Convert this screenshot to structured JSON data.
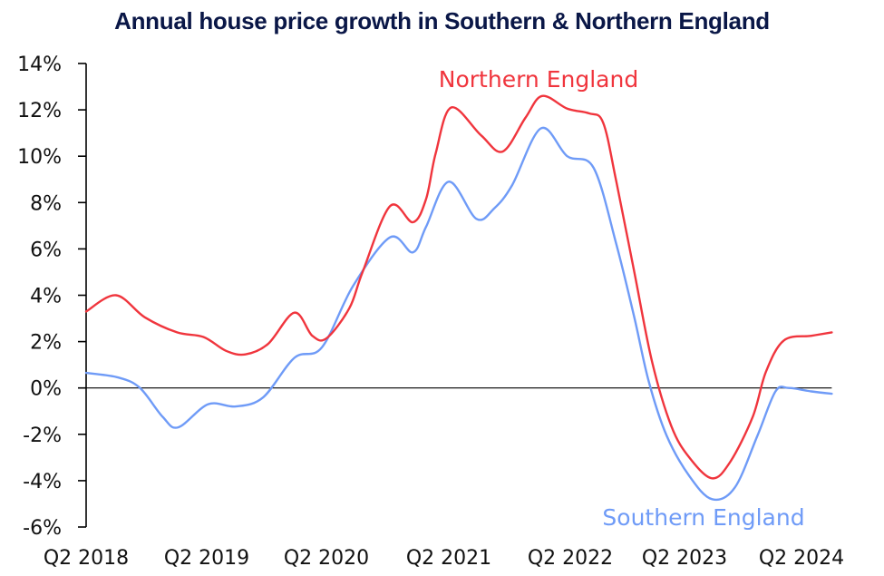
{
  "chart_data": {
    "type": "line",
    "title": "Annual house price growth in Southern & Northern England",
    "xlabel": "",
    "ylabel": "",
    "ylim": [
      -6,
      14
    ],
    "xlim_years_since_q2_2018": [
      0,
      6.23
    ],
    "x_unit": "years since Q2 2018",
    "y_ticks": [
      14,
      12,
      10,
      8,
      6,
      4,
      2,
      0,
      -2,
      -4,
      -6
    ],
    "y_tick_labels": [
      "14%",
      "12%",
      "10%",
      "8%",
      "6%",
      "4%",
      "2%",
      "0%",
      "-2%",
      "-4%",
      "-6%"
    ],
    "x_ticks": [
      0,
      1,
      2,
      3,
      4,
      5,
      6
    ],
    "x_tick_labels": [
      "Q2 2018",
      "Q2 2019",
      "Q2 2020",
      "Q2 2021",
      "Q2 2022",
      "Q2 2023",
      "Q2 2024"
    ],
    "grid": false,
    "zero_line": true,
    "series": [
      {
        "name": "Northern England",
        "color": "#f0353d",
        "label_position": "top-center",
        "x": [
          0,
          0.25,
          0.49,
          0.76,
          0.98,
          1.17,
          1.33,
          1.52,
          1.74,
          1.89,
          2.01,
          2.2,
          2.31,
          2.54,
          2.73,
          2.84,
          2.92,
          3.05,
          3.3,
          3.48,
          3.67,
          3.81,
          4.02,
          4.2,
          4.32,
          4.43,
          4.58,
          4.73,
          4.89,
          5.04,
          5.23,
          5.38,
          5.57,
          5.68,
          5.83,
          6.06,
          6.23
        ],
        "values": [
          3.3,
          4.0,
          3.05,
          2.4,
          2.2,
          1.6,
          1.45,
          1.9,
          3.25,
          2.25,
          2.15,
          3.45,
          5.0,
          7.85,
          7.15,
          8.15,
          10.1,
          12.1,
          10.9,
          10.2,
          11.65,
          12.6,
          12.05,
          11.85,
          11.45,
          8.9,
          5.0,
          1.1,
          -1.65,
          -3.0,
          -3.9,
          -3.2,
          -1.25,
          0.7,
          2.05,
          2.25,
          2.4
        ]
      },
      {
        "name": "Southern England",
        "color": "#6f9bf7",
        "label_position": "bottom-right",
        "x": [
          0,
          0.27,
          0.45,
          0.64,
          0.77,
          1.02,
          1.25,
          1.48,
          1.74,
          1.97,
          2.23,
          2.54,
          2.73,
          2.84,
          3.03,
          3.26,
          3.41,
          3.56,
          3.8,
          4.02,
          4.24,
          4.43,
          4.58,
          4.7,
          4.85,
          5.04,
          5.23,
          5.42,
          5.61,
          5.76,
          5.87,
          6.06,
          6.23
        ],
        "values": [
          0.65,
          0.45,
          0.0,
          -1.25,
          -1.7,
          -0.7,
          -0.8,
          -0.4,
          1.3,
          1.75,
          4.4,
          6.5,
          5.85,
          6.95,
          8.9,
          7.3,
          7.75,
          8.75,
          11.2,
          10.0,
          9.5,
          6.2,
          3.05,
          0.3,
          -2.05,
          -3.8,
          -4.8,
          -4.3,
          -2.05,
          -0.15,
          0.0,
          -0.15,
          -0.25
        ]
      }
    ]
  }
}
